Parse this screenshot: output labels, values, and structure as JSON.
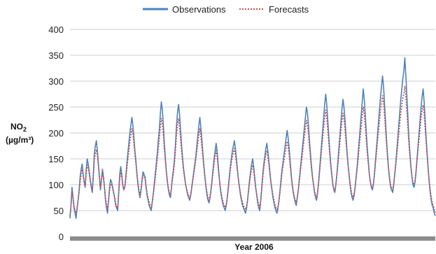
{
  "chart_data": {
    "type": "line",
    "title": "",
    "xlabel": "Year 2006",
    "ylabel_main": "NO",
    "ylabel_sub": "2",
    "ylabel_unit": "(µg/m³)",
    "ylim": [
      0,
      400
    ],
    "yticks": [
      "0",
      "50",
      "100",
      "150",
      "200",
      "250",
      "300",
      "350",
      "400"
    ],
    "grid": true,
    "legend_position": "top-center",
    "series": [
      {
        "name": "Observations",
        "color": "#4f81bd",
        "style": "solid",
        "values": [
          35,
          60,
          95,
          75,
          55,
          45,
          35,
          55,
          70,
          90,
          115,
          130,
          140,
          120,
          105,
          95,
          130,
          150,
          140,
          125,
          110,
          95,
          85,
          120,
          160,
          175,
          185,
          165,
          140,
          115,
          90,
          110,
          130,
          115,
          95,
          70,
          55,
          45,
          70,
          95,
          110,
          105,
          95,
          85,
          75,
          60,
          55,
          50,
          85,
          120,
          135,
          120,
          100,
          90,
          95,
          115,
          140,
          160,
          180,
          200,
          215,
          230,
          215,
          190,
          165,
          145,
          120,
          100,
          85,
          75,
          90,
          110,
          125,
          120,
          115,
          95,
          80,
          70,
          60,
          55,
          50,
          65,
          80,
          100,
          120,
          140,
          160,
          185,
          205,
          235,
          260,
          245,
          215,
          180,
          150,
          125,
          105,
          90,
          80,
          75,
          95,
          115,
          130,
          150,
          180,
          215,
          240,
          255,
          235,
          205,
          175,
          150,
          130,
          115,
          100,
          90,
          80,
          75,
          70,
          80,
          95,
          110,
          125,
          140,
          155,
          175,
          195,
          215,
          230,
          210,
          185,
          160,
          135,
          115,
          95,
          80,
          70,
          65,
          75,
          90,
          110,
          130,
          150,
          165,
          180,
          165,
          140,
          115,
          95,
          80,
          70,
          60,
          55,
          50,
          60,
          75,
          95,
          115,
          135,
          150,
          165,
          175,
          185,
          170,
          150,
          130,
          110,
          95,
          80,
          70,
          60,
          55,
          50,
          45,
          55,
          70,
          90,
          110,
          125,
          140,
          150,
          135,
          115,
          95,
          80,
          65,
          55,
          50,
          70,
          95,
          120,
          140,
          155,
          170,
          180,
          165,
          145,
          125,
          105,
          90,
          75,
          65,
          55,
          50,
          45,
          55,
          70,
          90,
          110,
          130,
          145,
          160,
          175,
          190,
          205,
          190,
          170,
          145,
          120,
          100,
          85,
          75,
          65,
          60,
          75,
          90,
          110,
          130,
          150,
          170,
          190,
          210,
          230,
          250,
          240,
          215,
          185,
          160,
          135,
          115,
          100,
          85,
          75,
          70,
          85,
          105,
          130,
          155,
          180,
          205,
          230,
          255,
          275,
          255,
          225,
          195,
          165,
          140,
          120,
          100,
          90,
          85,
          100,
          120,
          145,
          170,
          195,
          220,
          245,
          265,
          250,
          225,
          195,
          165,
          140,
          120,
          100,
          85,
          75,
          70,
          80,
          95,
          115,
          135,
          160,
          185,
          210,
          235,
          260,
          285,
          265,
          235,
          200,
          170,
          145,
          120,
          105,
          95,
          90,
          100,
          120,
          145,
          170,
          195,
          220,
          245,
          270,
          290,
          310,
          290,
          255,
          220,
          185,
          155,
          130,
          110,
          95,
          90,
          85,
          100,
          120,
          140,
          165,
          190,
          215,
          240,
          265,
          285,
          305,
          320,
          345,
          310,
          270,
          230,
          190,
          160,
          135,
          115,
          100,
          95,
          105,
          125,
          150,
          175,
          200,
          225,
          250,
          270,
          285,
          260,
          225,
          190,
          160,
          130,
          105,
          85,
          70,
          60,
          55,
          45,
          40
        ]
      },
      {
        "name": "Forecasts",
        "color": "#c0504d",
        "style": "dotted",
        "values": [
          40,
          60,
          85,
          75,
          60,
          50,
          45,
          55,
          70,
          85,
          105,
          120,
          130,
          118,
          105,
          98,
          122,
          138,
          132,
          120,
          108,
          96,
          88,
          115,
          148,
          160,
          168,
          155,
          135,
          115,
          95,
          108,
          122,
          112,
          96,
          75,
          62,
          52,
          68,
          88,
          102,
          100,
          92,
          84,
          76,
          64,
          58,
          55,
          82,
          110,
          124,
          115,
          100,
          92,
          95,
          110,
          130,
          148,
          165,
          182,
          195,
          208,
          198,
          178,
          158,
          140,
          120,
          104,
          90,
          80,
          90,
          106,
          118,
          116,
          110,
          96,
          84,
          74,
          66,
          60,
          56,
          66,
          80,
          96,
          112,
          130,
          148,
          168,
          186,
          210,
          228,
          218,
          195,
          168,
          145,
          124,
          106,
          94,
          84,
          80,
          94,
          110,
          124,
          142,
          168,
          196,
          216,
          228,
          212,
          188,
          164,
          144,
          126,
          112,
          100,
          92,
          84,
          78,
          74,
          82,
          94,
          108,
          120,
          134,
          148,
          164,
          180,
          196,
          208,
          192,
          172,
          152,
          132,
          114,
          98,
          86,
          76,
          70,
          78,
          90,
          106,
          124,
          140,
          154,
          166,
          154,
          134,
          114,
          98,
          84,
          74,
          66,
          60,
          56,
          62,
          76,
          92,
          110,
          128,
          142,
          154,
          162,
          170,
          158,
          142,
          126,
          110,
          96,
          84,
          74,
          66,
          60,
          56,
          52,
          58,
          72,
          88,
          104,
          118,
          130,
          138,
          126,
          110,
          94,
          82,
          70,
          62,
          56,
          70,
          92,
          114,
          132,
          146,
          158,
          166,
          154,
          138,
          120,
          104,
          92,
          80,
          70,
          62,
          56,
          52,
          58,
          70,
          86,
          104,
          122,
          136,
          148,
          160,
          172,
          184,
          172,
          156,
          136,
          116,
          100,
          88,
          78,
          70,
          66,
          76,
          90,
          106,
          124,
          140,
          158,
          174,
          192,
          208,
          224,
          216,
          196,
          172,
          150,
          130,
          114,
          100,
          88,
          80,
          76,
          86,
          102,
          124,
          146,
          168,
          188,
          208,
          228,
          244,
          230,
          206,
          182,
          158,
          136,
          118,
          102,
          92,
          88,
          100,
          118,
          138,
          160,
          182,
          202,
          222,
          238,
          226,
          206,
          182,
          158,
          138,
          120,
          104,
          90,
          80,
          76,
          82,
          96,
          112,
          130,
          150,
          172,
          192,
          212,
          232,
          250,
          236,
          212,
          184,
          160,
          140,
          120,
          106,
          98,
          94,
          102,
          118,
          140,
          160,
          182,
          202,
          222,
          242,
          258,
          272,
          258,
          232,
          204,
          176,
          150,
          130,
          112,
          100,
          94,
          90,
          102,
          120,
          136,
          156,
          176,
          198,
          218,
          238,
          254,
          268,
          276,
          290,
          268,
          240,
          208,
          178,
          154,
          132,
          116,
          104,
          100,
          108,
          124,
          146,
          168,
          188,
          208,
          228,
          244,
          254,
          236,
          208,
          180,
          154,
          130,
          108,
          90,
          76,
          66,
          60,
          52,
          46
        ]
      }
    ]
  }
}
